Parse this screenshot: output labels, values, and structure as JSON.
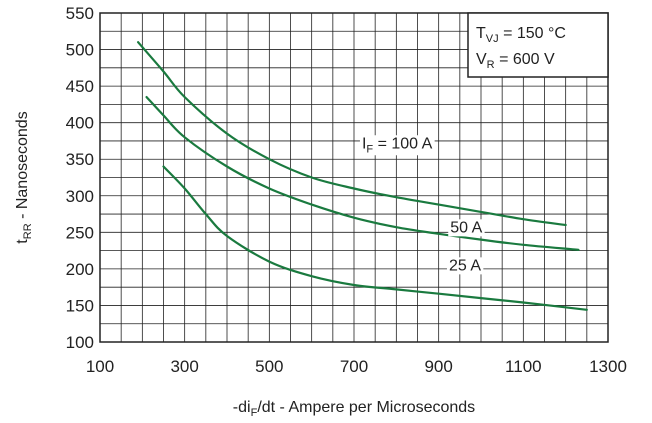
{
  "chart_data": {
    "type": "line",
    "xlabel": {
      "prefix": "-di",
      "sub": "F",
      "suffix": "/dt - Ampere per Microseconds"
    },
    "ylabel": {
      "prefix": "t",
      "sub": "RR",
      "suffix": " - Nanoseconds"
    },
    "xlim": [
      100,
      1300
    ],
    "ylim": [
      100,
      550
    ],
    "x_ticks": [
      100,
      300,
      500,
      700,
      900,
      1100,
      1300
    ],
    "y_ticks": [
      100,
      150,
      200,
      250,
      300,
      350,
      400,
      450,
      500,
      550
    ],
    "x_minor_step": 50,
    "y_minor_step": 25,
    "grid": true,
    "line_color": "#1a7a3f",
    "conditions": {
      "tvj": {
        "prefix": "T",
        "sub": "VJ",
        "suffix": " = 150 °C"
      },
      "vr": {
        "prefix": "V",
        "sub": "R",
        "suffix": " = 600 V"
      }
    },
    "series": [
      {
        "name": "100 A",
        "label": {
          "prefix": "I",
          "sub": "F",
          "suffix": " = 100 A"
        },
        "x": [
          190,
          250,
          300,
          400,
          500,
          600,
          700,
          800,
          900,
          1000,
          1100,
          1200
        ],
        "y": [
          510,
          470,
          435,
          385,
          350,
          325,
          310,
          298,
          288,
          278,
          268,
          260
        ]
      },
      {
        "name": "50 A",
        "label": {
          "prefix": "",
          "sub": "",
          "suffix": "50 A"
        },
        "x": [
          210,
          250,
          300,
          400,
          500,
          600,
          700,
          800,
          900,
          1000,
          1100,
          1230
        ],
        "y": [
          435,
          410,
          380,
          340,
          310,
          288,
          270,
          257,
          248,
          240,
          233,
          226
        ]
      },
      {
        "name": "25 A",
        "label": {
          "prefix": "",
          "sub": "",
          "suffix": "25 A"
        },
        "x": [
          250,
          300,
          350,
          400,
          500,
          600,
          700,
          800,
          900,
          1000,
          1100,
          1250
        ],
        "y": [
          340,
          310,
          275,
          245,
          210,
          190,
          178,
          172,
          166,
          160,
          154,
          144
        ]
      }
    ]
  }
}
